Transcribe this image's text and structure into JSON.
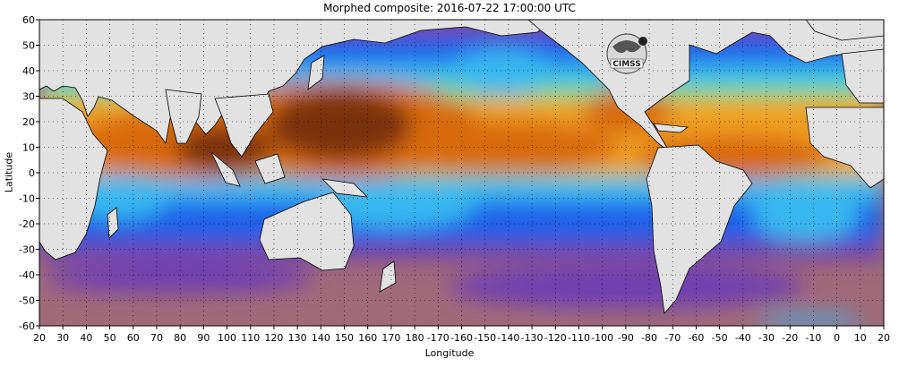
{
  "title": "Morphed composite: 2016-07-22 17:00:00 UTC",
  "logo_text": "CIMSS",
  "chart_data": {
    "type": "heatmap",
    "xlabel": "Longitude",
    "ylabel": "Latitude",
    "x_ticks": [
      "20",
      "30",
      "40",
      "50",
      "60",
      "70",
      "80",
      "90",
      "100",
      "110",
      "120",
      "130",
      "140",
      "150",
      "160",
      "170",
      "180",
      "-170",
      "-160",
      "-150",
      "-140",
      "-130",
      "-120",
      "-110",
      "-100",
      "-90",
      "-80",
      "-70",
      "-60",
      "-50",
      "-40",
      "-30",
      "-20",
      "-10",
      "0",
      "10",
      "20"
    ],
    "y_ticks": [
      "60",
      "50",
      "40",
      "30",
      "20",
      "10",
      "0",
      "-10",
      "-20",
      "-30",
      "-40",
      "-50",
      "-60"
    ],
    "xlim": [
      20,
      380
    ],
    "ylim": [
      -60,
      60
    ],
    "grid": "dotted",
    "colors": {
      "land": "#e2e2e2",
      "very_high": "#7a3010",
      "high": "#d86a10",
      "med_high": "#f0a020",
      "medium": "#6ee07a",
      "med_low": "#38b8f0",
      "low": "#1a60e8",
      "very_low": "#7040b0",
      "lowest": "#a06a78"
    }
  }
}
